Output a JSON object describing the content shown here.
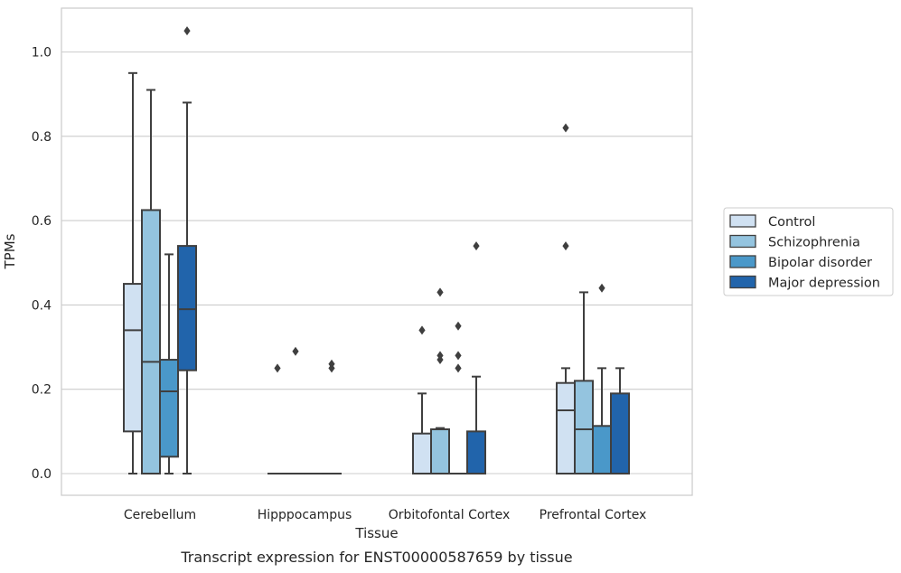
{
  "caption": "Transcript expression for ENST00000587659 by tissue",
  "chart_data": {
    "type": "box",
    "title": "",
    "xlabel": "Tissue",
    "ylabel": "TPMs",
    "ylim": [
      -0.05,
      1.1
    ],
    "yticks": [
      "0.0",
      "0.2",
      "0.4",
      "0.6",
      "0.8",
      "1.0"
    ],
    "ytick_values": [
      0.0,
      0.2,
      0.4,
      0.6,
      0.8,
      1.0
    ],
    "grid": "horizontal",
    "legend_position": "right",
    "categories": [
      "Cerebellum",
      "Hipppocampus",
      "Orbitofontal Cortex",
      "Prefrontal Cortex"
    ],
    "series": [
      {
        "name": "Control",
        "color": "#d0e1f2",
        "boxes": [
          {
            "min": 0.0,
            "q1": 0.1,
            "median": 0.34,
            "q3": 0.45,
            "max": 0.95,
            "outliers": []
          },
          {
            "min": 0.0,
            "q1": 0.0,
            "median": 0.0,
            "q3": 0.0,
            "max": 0.0,
            "outliers": [
              0.25
            ]
          },
          {
            "min": 0.0,
            "q1": 0.0,
            "median": 0.0,
            "q3": 0.095,
            "max": 0.19,
            "outliers": [
              0.34
            ]
          },
          {
            "min": 0.0,
            "q1": 0.0,
            "median": 0.15,
            "q3": 0.215,
            "max": 0.25,
            "outliers": [
              0.54,
              0.82
            ]
          }
        ]
      },
      {
        "name": "Schizophrenia",
        "color": "#94c4df",
        "boxes": [
          {
            "min": 0.0,
            "q1": 0.0,
            "median": 0.265,
            "q3": 0.625,
            "max": 0.91,
            "outliers": []
          },
          {
            "min": 0.0,
            "q1": 0.0,
            "median": 0.0,
            "q3": 0.0,
            "max": 0.0,
            "outliers": [
              0.29
            ]
          },
          {
            "min": 0.0,
            "q1": 0.0,
            "median": 0.105,
            "q3": 0.105,
            "max": 0.108,
            "outliers": [
              0.27,
              0.28,
              0.43
            ]
          },
          {
            "min": 0.0,
            "q1": 0.0,
            "median": 0.105,
            "q3": 0.22,
            "max": 0.43,
            "outliers": []
          }
        ]
      },
      {
        "name": "Bipolar disorder",
        "color": "#4a98c9",
        "boxes": [
          {
            "min": 0.0,
            "q1": 0.04,
            "median": 0.195,
            "q3": 0.27,
            "max": 0.52,
            "outliers": []
          },
          {
            "min": 0.0,
            "q1": 0.0,
            "median": 0.0,
            "q3": 0.0,
            "max": 0.0,
            "outliers": []
          },
          {
            "min": 0.0,
            "q1": 0.0,
            "median": 0.0,
            "q3": 0.0,
            "max": 0.0,
            "outliers": [
              0.25,
              0.28,
              0.35
            ]
          },
          {
            "min": 0.0,
            "q1": 0.0,
            "median": 0.0,
            "q3": 0.113,
            "max": 0.25,
            "outliers": [
              0.44
            ]
          }
        ]
      },
      {
        "name": "Major depression",
        "color": "#2164ab",
        "boxes": [
          {
            "min": 0.0,
            "q1": 0.245,
            "median": 0.39,
            "q3": 0.54,
            "max": 0.88,
            "outliers": [
              1.05
            ]
          },
          {
            "min": 0.0,
            "q1": 0.0,
            "median": 0.0,
            "q3": 0.0,
            "max": 0.0,
            "outliers": [
              0.25,
              0.26
            ]
          },
          {
            "min": 0.0,
            "q1": 0.0,
            "median": 0.0,
            "q3": 0.1,
            "max": 0.23,
            "outliers": [
              0.54
            ]
          },
          {
            "min": 0.0,
            "q1": 0.0,
            "median": 0.0,
            "q3": 0.19,
            "max": 0.25,
            "outliers": []
          }
        ]
      }
    ]
  }
}
